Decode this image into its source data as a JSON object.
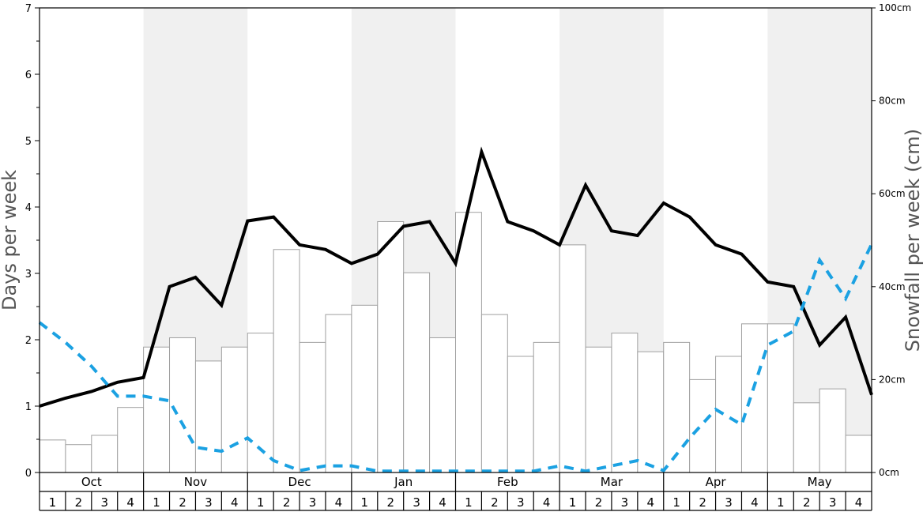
{
  "chart_data": {
    "type": "bar",
    "title": "",
    "ylabel": "Days per week",
    "y2label": "Snowfall per week (cm)",
    "ylim": [
      0,
      7
    ],
    "y2lim": [
      0,
      100
    ],
    "yticks": [
      0,
      1,
      2,
      3,
      4,
      5,
      6,
      7
    ],
    "y2ticks": [
      "0cm",
      "20cm",
      "40cm",
      "60cm",
      "80cm",
      "100cm"
    ],
    "y2tick_values": [
      0,
      20,
      40,
      60,
      80,
      100
    ],
    "months": [
      "Oct",
      "Nov",
      "Dec",
      "Jan",
      "Feb",
      "Mar",
      "Apr",
      "May"
    ],
    "week_labels": [
      "1",
      "2",
      "3",
      "4"
    ],
    "shaded_months": [
      "Nov",
      "Jan",
      "Mar",
      "May"
    ],
    "colors": {
      "bar_fill": "#ffffff",
      "bar_stroke": "#a0a0a0",
      "line_days": "#000000",
      "line_dashed": "#1ba1e2",
      "shade": "#f0f0f0"
    },
    "series": [
      {
        "type": "bar",
        "axis": "right",
        "values": [
          7,
          6,
          8,
          14,
          27,
          29,
          24,
          27,
          30,
          48,
          28,
          34,
          36,
          54,
          43,
          29,
          56,
          34,
          25,
          28,
          49,
          27,
          30,
          26,
          28,
          20,
          25,
          32,
          32,
          15,
          18,
          8
        ]
      },
      {
        "type": "line",
        "axis": "left",
        "style": "solid",
        "values": [
          1.0,
          1.12,
          1.22,
          1.36,
          1.43,
          2.8,
          2.94,
          2.52,
          3.79,
          3.85,
          3.43,
          3.36,
          3.15,
          3.29,
          3.71,
          3.78,
          3.15,
          4.83,
          3.78,
          3.64,
          3.43,
          4.33,
          3.64,
          3.57,
          4.06,
          3.85,
          3.43,
          3.29,
          2.87,
          2.8,
          1.92,
          2.34,
          1.17
        ]
      },
      {
        "type": "line",
        "axis": "left",
        "style": "dashed",
        "values": [
          2.26,
          1.96,
          1.6,
          1.15,
          1.15,
          1.08,
          0.38,
          0.32,
          0.52,
          0.18,
          0.03,
          0.1,
          0.1,
          0.02,
          0.02,
          0.02,
          0.02,
          0.02,
          0.02,
          0.02,
          0.1,
          0.02,
          0.1,
          0.18,
          0.03,
          0.52,
          0.95,
          0.72,
          1.92,
          2.13,
          3.2,
          2.62,
          3.44
        ]
      }
    ]
  }
}
